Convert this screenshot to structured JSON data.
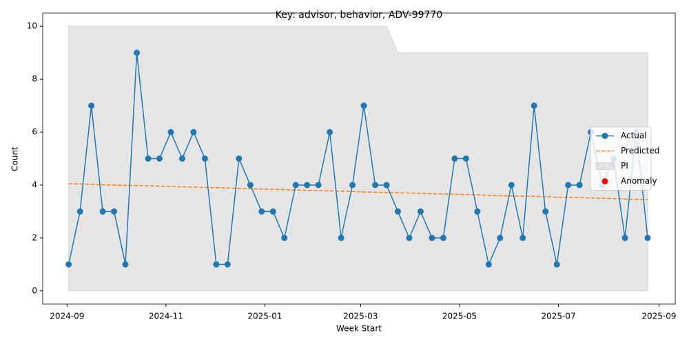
{
  "chart_data": {
    "type": "line",
    "title": "Key: advisor, behavior, ADV-99770",
    "x_label": "Week Start",
    "y_label": "Count",
    "x": [
      "2024-09-02",
      "2024-09-09",
      "2024-09-16",
      "2024-09-23",
      "2024-09-30",
      "2024-10-07",
      "2024-10-14",
      "2024-10-21",
      "2024-10-28",
      "2024-11-04",
      "2024-11-11",
      "2024-11-18",
      "2024-11-25",
      "2024-12-02",
      "2024-12-09",
      "2024-12-16",
      "2024-12-23",
      "2024-12-30",
      "2025-01-06",
      "2025-01-13",
      "2025-01-20",
      "2025-01-27",
      "2025-02-03",
      "2025-02-10",
      "2025-02-17",
      "2025-02-24",
      "2025-03-03",
      "2025-03-10",
      "2025-03-17",
      "2025-03-24",
      "2025-03-31",
      "2025-04-07",
      "2025-04-14",
      "2025-04-21",
      "2025-04-28",
      "2025-05-05",
      "2025-05-12",
      "2025-05-19",
      "2025-05-26",
      "2025-06-02",
      "2025-06-09",
      "2025-06-16",
      "2025-06-23",
      "2025-06-30",
      "2025-07-07",
      "2025-07-14",
      "2025-07-21",
      "2025-07-28",
      "2025-08-04",
      "2025-08-11",
      "2025-08-18",
      "2025-08-25"
    ],
    "series": [
      {
        "name": "Actual",
        "style": "line-markers",
        "color": "#1f77b4",
        "values": [
          1,
          3,
          7,
          3,
          3,
          1,
          9,
          5,
          5,
          6,
          5,
          6,
          5,
          1,
          1,
          5,
          4,
          3,
          3,
          2,
          4,
          4,
          4,
          6,
          2,
          4,
          7,
          4,
          4,
          3,
          2,
          3,
          2,
          2,
          5,
          5,
          3,
          1,
          2,
          4,
          2,
          7,
          3,
          1,
          4,
          4,
          6,
          4,
          5,
          2,
          6,
          2
        ]
      },
      {
        "name": "Predicted",
        "style": "dashed",
        "color": "#ff7f0e",
        "values": [
          4.05,
          4.04,
          4.03,
          4.01,
          4.0,
          3.99,
          3.98,
          3.97,
          3.96,
          3.94,
          3.93,
          3.92,
          3.91,
          3.9,
          3.89,
          3.87,
          3.86,
          3.85,
          3.84,
          3.83,
          3.81,
          3.8,
          3.79,
          3.78,
          3.77,
          3.76,
          3.74,
          3.73,
          3.72,
          3.71,
          3.7,
          3.69,
          3.67,
          3.66,
          3.65,
          3.64,
          3.63,
          3.61,
          3.6,
          3.59,
          3.58,
          3.57,
          3.56,
          3.54,
          3.53,
          3.52,
          3.51,
          3.5,
          3.49,
          3.47,
          3.46,
          3.45
        ]
      },
      {
        "name": "PI",
        "style": "band",
        "color": "#d3d3d3",
        "upper": [
          10,
          10,
          10,
          10,
          10,
          10,
          10,
          10,
          10,
          10,
          10,
          10,
          10,
          10,
          10,
          10,
          10,
          10,
          10,
          10,
          10,
          10,
          10,
          10,
          10,
          10,
          10,
          10,
          10,
          9,
          9,
          9,
          9,
          9,
          9,
          9,
          9,
          9,
          9,
          9,
          9,
          9,
          9,
          9,
          9,
          9,
          9,
          9,
          9,
          9,
          9,
          9
        ],
        "lower": [
          0,
          0,
          0,
          0,
          0,
          0,
          0,
          0,
          0,
          0,
          0,
          0,
          0,
          0,
          0,
          0,
          0,
          0,
          0,
          0,
          0,
          0,
          0,
          0,
          0,
          0,
          0,
          0,
          0,
          0,
          0,
          0,
          0,
          0,
          0,
          0,
          0,
          0,
          0,
          0,
          0,
          0,
          0,
          0,
          0,
          0,
          0,
          0,
          0,
          0,
          0,
          0
        ]
      },
      {
        "name": "Anomaly",
        "style": "points",
        "color": "#ff0000",
        "values": [
          null,
          null,
          null,
          null,
          null,
          null,
          null,
          null,
          null,
          null,
          null,
          null,
          null,
          null,
          null,
          null,
          null,
          null,
          null,
          null,
          null,
          null,
          null,
          null,
          null,
          null,
          null,
          null,
          null,
          null,
          null,
          null,
          null,
          null,
          null,
          null,
          null,
          null,
          null,
          null,
          null,
          null,
          null,
          null,
          null,
          null,
          null,
          null,
          null,
          null,
          null,
          null
        ]
      }
    ],
    "xlim": [
      "2024-08-17",
      "2025-09-11"
    ],
    "xticks": [
      {
        "value": "2024-09-01",
        "label": "2024-09"
      },
      {
        "value": "2024-11-01",
        "label": "2024-11"
      },
      {
        "value": "2025-01-01",
        "label": "2025-01"
      },
      {
        "value": "2025-03-01",
        "label": "2025-03"
      },
      {
        "value": "2025-05-01",
        "label": "2025-05"
      },
      {
        "value": "2025-07-01",
        "label": "2025-07"
      },
      {
        "value": "2025-09-01",
        "label": "2025-09"
      }
    ],
    "ylim": [
      -0.5,
      10.5
    ],
    "yticks": [
      0,
      2,
      4,
      6,
      8,
      10
    ],
    "grid": false,
    "legend": "center right"
  }
}
